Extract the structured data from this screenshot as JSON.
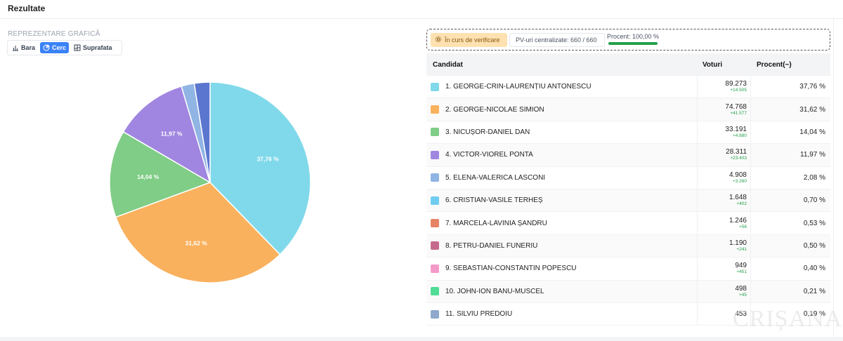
{
  "header": {
    "title": "Rezultate"
  },
  "chart_section": {
    "label": "REPREZENTARE GRAFICĂ",
    "tabs": [
      {
        "label": "Bara",
        "icon": "bar-chart-icon",
        "active": false
      },
      {
        "label": "Cerc",
        "icon": "pie-chart-icon",
        "active": true
      },
      {
        "label": "Suprafata",
        "icon": "treemap-icon",
        "active": false
      }
    ]
  },
  "status": {
    "verify_label": "În curs de verificare",
    "pv_label": "PV-uri centralizate: 660 / 660",
    "procent_label": "Procent: 100,00 %",
    "procent_value": 1.0
  },
  "table": {
    "headers": {
      "candidate": "Candidat",
      "votes": "Voturi",
      "percent": "Procent(~)"
    },
    "rows": [
      {
        "name": "1. GEORGE-CRIN-LAURENȚIU ANTONESCU",
        "votes": "89.273",
        "delta": "+14.505",
        "percent": "37,76 %",
        "color": "#80d9ea"
      },
      {
        "name": "2. GEORGE-NICOLAE SIMION",
        "votes": "74.768",
        "delta": "+41.577",
        "percent": "31,62 %",
        "color": "#f9b15e"
      },
      {
        "name": "3. NICUȘOR-DANIEL DAN",
        "votes": "33.191",
        "delta": "+4.880",
        "percent": "14,04 %",
        "color": "#7fcd86"
      },
      {
        "name": "4. VICTOR-VIOREL PONTA",
        "votes": "28.311",
        "delta": "+23.403",
        "percent": "11,97 %",
        "color": "#a086e0"
      },
      {
        "name": "5. ELENA-VALERICA LASCONI",
        "votes": "4.908",
        "delta": "+3.260",
        "percent": "2,08 %",
        "color": "#90b4e4"
      },
      {
        "name": "6. CRISTIAN-VASILE TERHEȘ",
        "votes": "1.648",
        "delta": "+402",
        "percent": "0,70 %",
        "color": "#6fcdf0"
      },
      {
        "name": "7. MARCELA-LAVINIA ȘANDRU",
        "votes": "1.246",
        "delta": "+56",
        "percent": "0,53 %",
        "color": "#e68466"
      },
      {
        "name": "8. PETRU-DANIEL FUNERIU",
        "votes": "1.190",
        "delta": "+241",
        "percent": "0,50 %",
        "color": "#c56a8c"
      },
      {
        "name": "9. SEBASTIAN-CONSTANTIN POPESCU",
        "votes": "949",
        "delta": "+451",
        "percent": "0,40 %",
        "color": "#f49ac9"
      },
      {
        "name": "10. JOHN-ION BANU-MUSCEL",
        "votes": "498",
        "delta": "+45",
        "percent": "0,21 %",
        "color": "#4fdc94"
      },
      {
        "name": "11. SILVIU PREDOIU",
        "votes": "453",
        "delta": "",
        "percent": "0,19 %",
        "color": "#8fa8cc"
      }
    ]
  },
  "chart_data": {
    "type": "pie",
    "categories": [
      "1",
      "2",
      "3",
      "4",
      "5",
      "rest"
    ],
    "values": [
      37.76,
      31.62,
      14.04,
      11.97,
      2.08,
      2.53
    ],
    "labels": [
      "37,76 %",
      "31,62 %",
      "14,04 %",
      "11,97 %",
      "",
      ""
    ],
    "colors": [
      "#80d9ea",
      "#f9b15e",
      "#7fcd86",
      "#a086e0",
      "#90b4e4",
      "#5b76cf"
    ]
  },
  "watermark": "CRIȘANA"
}
